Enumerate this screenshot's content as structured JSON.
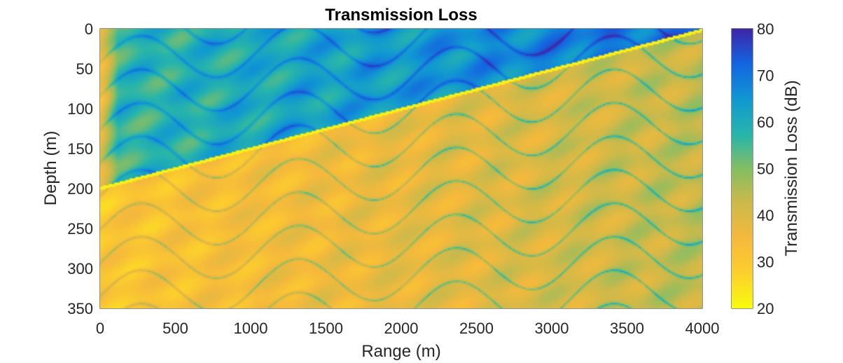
{
  "chart_data": {
    "type": "heatmap",
    "title": "Transmission Loss",
    "xlabel": "Range (m)",
    "ylabel": "Depth (m)",
    "xlim": [
      0,
      4000
    ],
    "ylim": [
      0,
      350
    ],
    "y_reversed": true,
    "xticks": [
      0,
      500,
      1000,
      1500,
      2000,
      2500,
      3000,
      3500,
      4000
    ],
    "yticks": [
      0,
      50,
      100,
      150,
      200,
      250,
      300,
      350
    ],
    "colorbar": {
      "label": "Transmission Loss (dB)",
      "range": [
        20,
        80
      ],
      "ticks": [
        20,
        30,
        40,
        50,
        60,
        70,
        80
      ],
      "colormap": "parula-reversed"
    },
    "interface_line": {
      "x": [
        0,
        4000
      ],
      "y": [
        198,
        0
      ]
    },
    "regions": [
      {
        "name_visible": false,
        "area": "above interface",
        "typical_value_range": [
          55,
          78
        ]
      },
      {
        "name_visible": false,
        "area": "below interface",
        "typical_value_range": [
          24,
          58
        ]
      }
    ]
  }
}
